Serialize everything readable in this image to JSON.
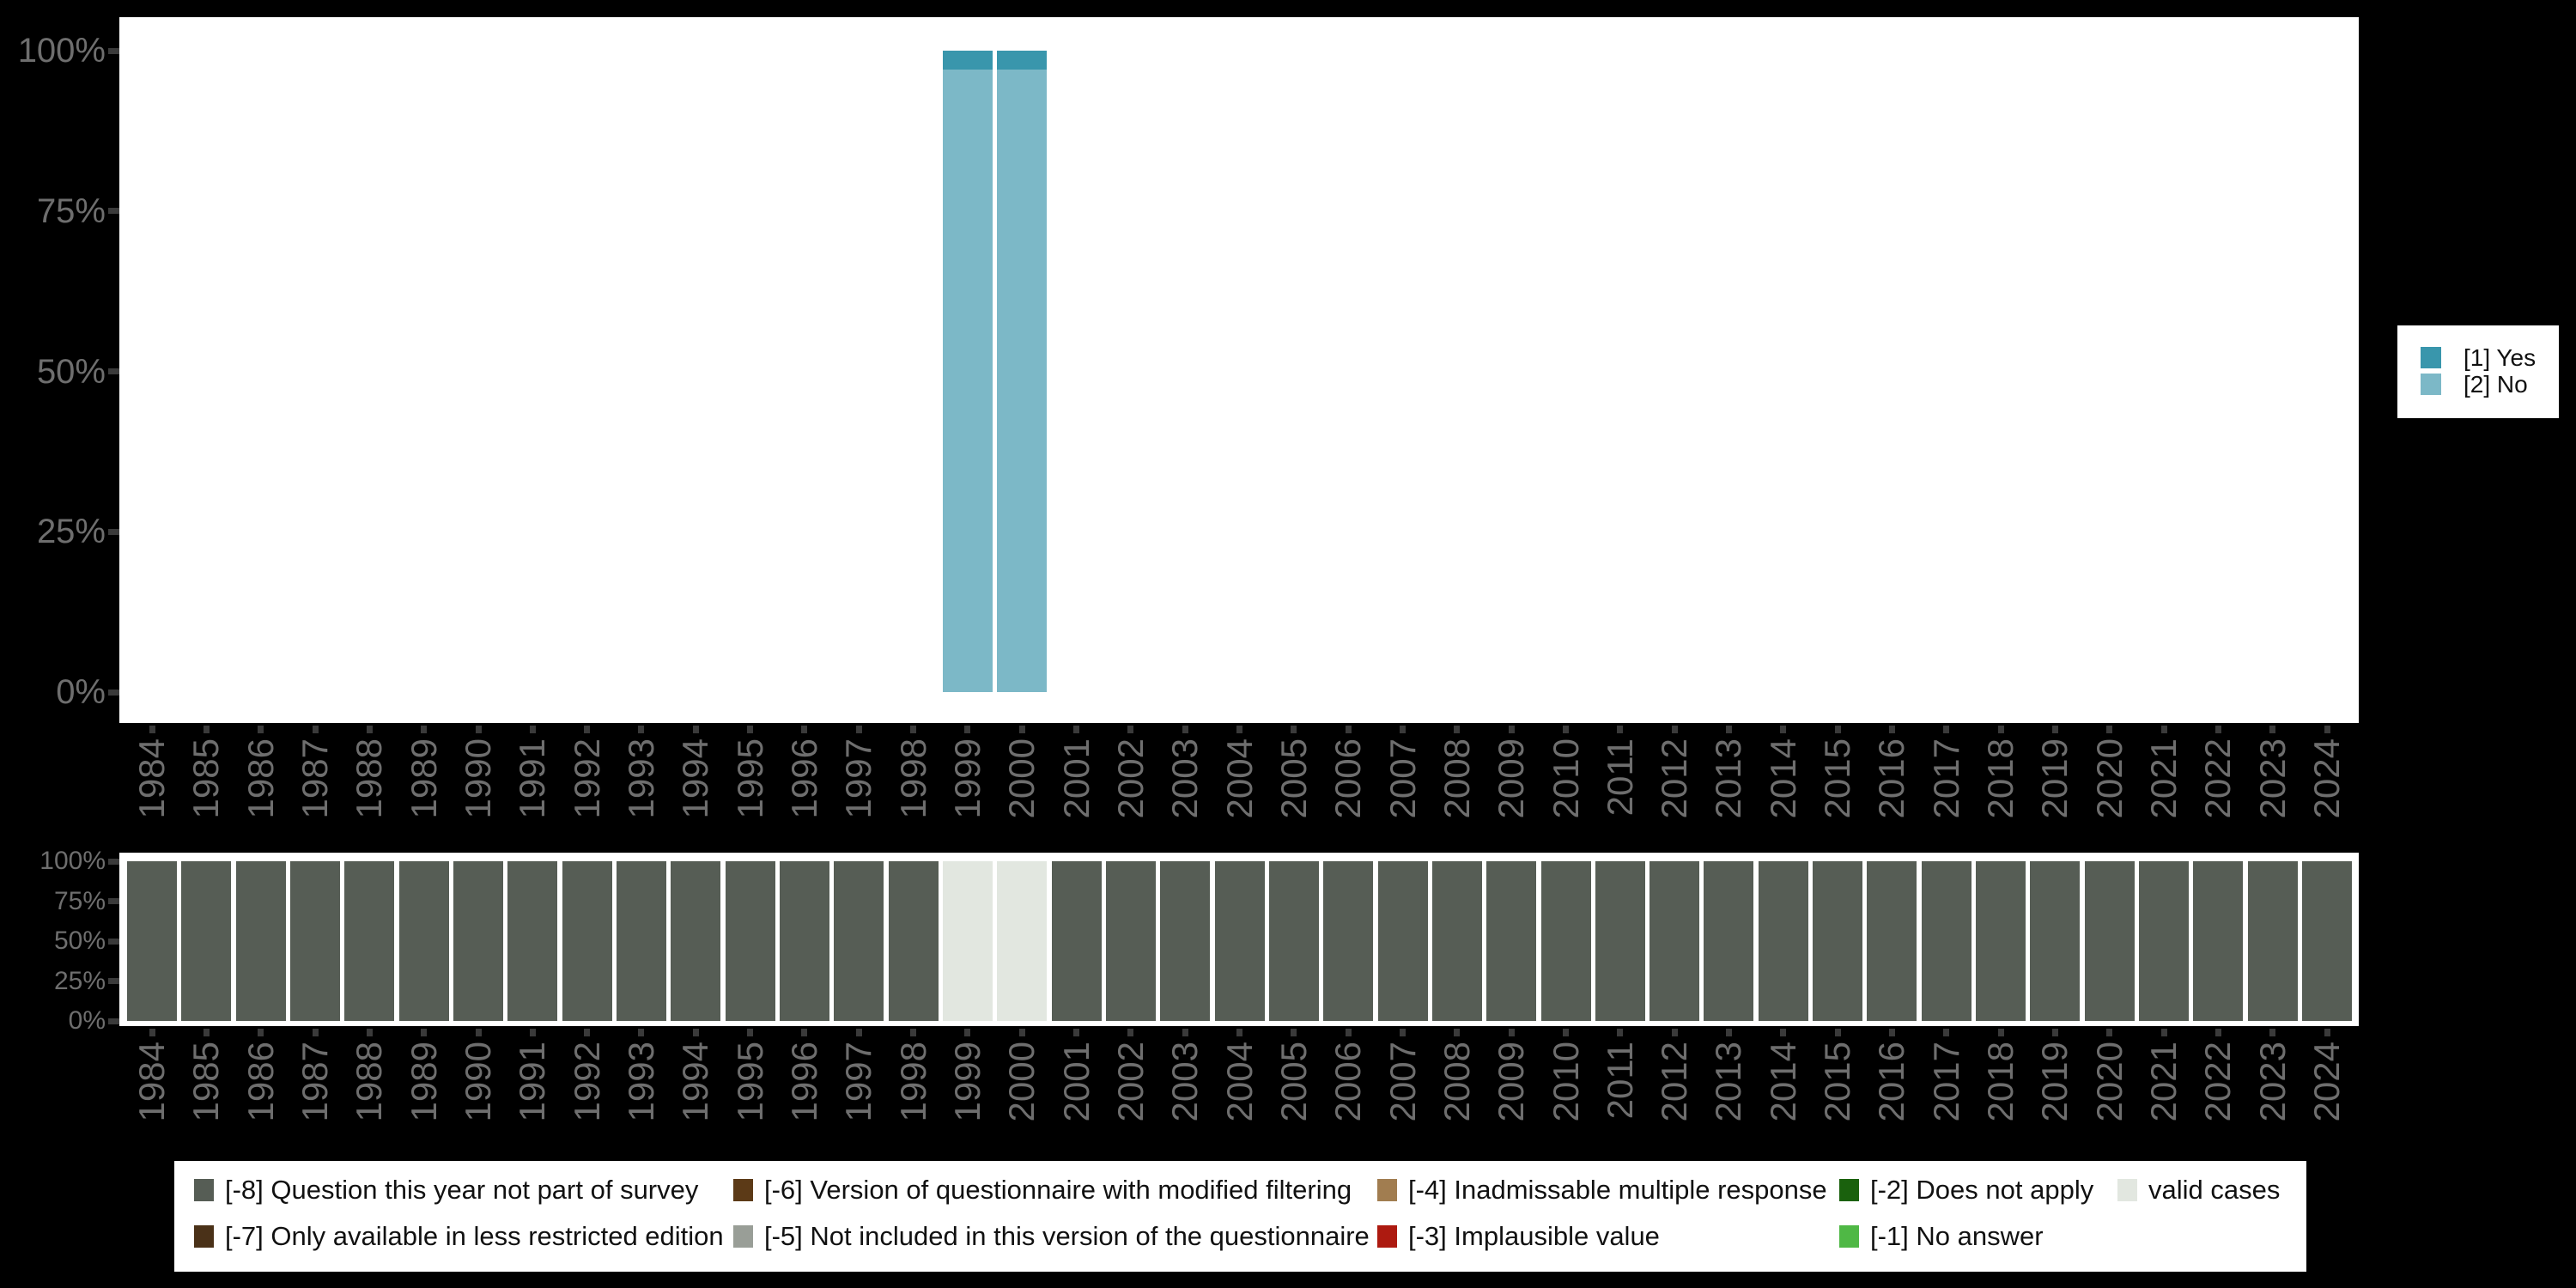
{
  "background": "#000000",
  "panel_background": "#ffffff",
  "axis": {
    "label_color": "#6e6e6e",
    "tick_color": "#3a3a3a"
  },
  "years": [
    "1984",
    "1985",
    "1986",
    "1987",
    "1988",
    "1989",
    "1990",
    "1991",
    "1992",
    "1993",
    "1994",
    "1995",
    "1996",
    "1997",
    "1998",
    "1999",
    "2000",
    "2001",
    "2002",
    "2003",
    "2004",
    "2005",
    "2006",
    "2007",
    "2008",
    "2009",
    "2010",
    "2011",
    "2012",
    "2013",
    "2014",
    "2015",
    "2016",
    "2017",
    "2018",
    "2019",
    "2020",
    "2021",
    "2022",
    "2023",
    "2024"
  ],
  "chart_data": [
    {
      "id": "responses_by_year",
      "type": "bar",
      "stacked": true,
      "orientation": "vertical",
      "categories": [
        "1984",
        "1985",
        "1986",
        "1987",
        "1988",
        "1989",
        "1990",
        "1991",
        "1992",
        "1993",
        "1994",
        "1995",
        "1996",
        "1997",
        "1998",
        "1999",
        "2000",
        "2001",
        "2002",
        "2003",
        "2004",
        "2005",
        "2006",
        "2007",
        "2008",
        "2009",
        "2010",
        "2011",
        "2012",
        "2013",
        "2014",
        "2015",
        "2016",
        "2017",
        "2018",
        "2019",
        "2020",
        "2021",
        "2022",
        "2023",
        "2024"
      ],
      "series": [
        {
          "name": "[1] Yes",
          "color": "#3996ac",
          "values": [
            0,
            0,
            0,
            0,
            0,
            0,
            0,
            0,
            0,
            0,
            0,
            0,
            0,
            0,
            0,
            3,
            3,
            0,
            0,
            0,
            0,
            0,
            0,
            0,
            0,
            0,
            0,
            0,
            0,
            0,
            0,
            0,
            0,
            0,
            0,
            0,
            0,
            0,
            0,
            0,
            0
          ]
        },
        {
          "name": "[2] No",
          "color": "#7cb8c7",
          "values": [
            0,
            0,
            0,
            0,
            0,
            0,
            0,
            0,
            0,
            0,
            0,
            0,
            0,
            0,
            0,
            97,
            97,
            0,
            0,
            0,
            0,
            0,
            0,
            0,
            0,
            0,
            0,
            0,
            0,
            0,
            0,
            0,
            0,
            0,
            0,
            0,
            0,
            0,
            0,
            0,
            0
          ]
        }
      ],
      "ylabel_ticks": [
        "100%",
        "75%",
        "50%",
        "25%",
        "0%"
      ],
      "ylim": [
        0,
        100
      ],
      "grid": false,
      "legend_position": "right"
    },
    {
      "id": "missing_values_by_year",
      "type": "bar",
      "stacked": true,
      "orientation": "vertical",
      "categories": [
        "1984",
        "1985",
        "1986",
        "1987",
        "1988",
        "1989",
        "1990",
        "1991",
        "1992",
        "1993",
        "1994",
        "1995",
        "1996",
        "1997",
        "1998",
        "1999",
        "2000",
        "2001",
        "2002",
        "2003",
        "2004",
        "2005",
        "2006",
        "2007",
        "2008",
        "2009",
        "2010",
        "2011",
        "2012",
        "2013",
        "2014",
        "2015",
        "2016",
        "2017",
        "2018",
        "2019",
        "2020",
        "2021",
        "2022",
        "2023",
        "2024"
      ],
      "series": [
        {
          "name": "[-8] Question this year not part of survey",
          "color": "#565d55",
          "values": [
            100,
            100,
            100,
            100,
            100,
            100,
            100,
            100,
            100,
            100,
            100,
            100,
            100,
            100,
            100,
            0,
            0,
            100,
            100,
            100,
            100,
            100,
            100,
            100,
            100,
            100,
            100,
            100,
            100,
            100,
            100,
            100,
            100,
            100,
            100,
            100,
            100,
            100,
            100,
            100,
            100
          ]
        },
        {
          "name": "valid cases",
          "color": "#e2e7e0",
          "values": [
            0,
            0,
            0,
            0,
            0,
            0,
            0,
            0,
            0,
            0,
            0,
            0,
            0,
            0,
            0,
            100,
            100,
            0,
            0,
            0,
            0,
            0,
            0,
            0,
            0,
            0,
            0,
            0,
            0,
            0,
            0,
            0,
            0,
            0,
            0,
            0,
            0,
            0,
            0,
            0,
            0
          ]
        }
      ],
      "ylabel_ticks": [
        "100%",
        "75%",
        "50%",
        "25%",
        "0%"
      ],
      "ylim": [
        0,
        100
      ],
      "grid": false,
      "legend_position": "bottom",
      "legend_items": [
        {
          "label": "[-8] Question this year not part of survey",
          "color": "#565d55",
          "col": 0,
          "row": 0
        },
        {
          "label": "[-7] Only available in less restricted edition",
          "color": "#4a3118",
          "col": 0,
          "row": 1
        },
        {
          "label": "[-6] Version of questionnaire with modified filtering",
          "color": "#5c3a17",
          "col": 1,
          "row": 0
        },
        {
          "label": "[-5] Not included in this version of the questionnaire",
          "color": "#999e97",
          "col": 1,
          "row": 1
        },
        {
          "label": "[-4] Inadmissable multiple response",
          "color": "#a17d50",
          "col": 2,
          "row": 0
        },
        {
          "label": "[-3] Implausible value",
          "color": "#ad1a10",
          "col": 2,
          "row": 1
        },
        {
          "label": "[-2] Does not apply",
          "color": "#1a610d",
          "col": 3,
          "row": 0
        },
        {
          "label": "[-1] No answer",
          "color": "#4fb845",
          "col": 3,
          "row": 1
        },
        {
          "label": "valid cases",
          "color": "#e2e7e0",
          "col": 4,
          "row": 0
        }
      ]
    }
  ],
  "right_legend": {
    "items": [
      {
        "label": "[1] Yes",
        "color": "#3996ac"
      },
      {
        "label": "[2] No",
        "color": "#7cb8c7"
      }
    ]
  }
}
